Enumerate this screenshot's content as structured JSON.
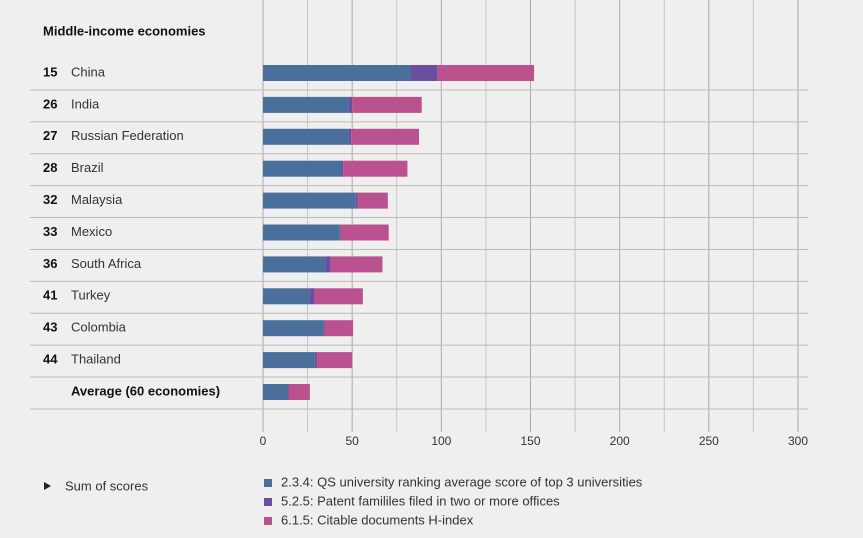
{
  "chart_data": {
    "type": "bar",
    "orientation": "horizontal",
    "stacked": true,
    "title": "Middle-income economies",
    "ranks": [
      15,
      26,
      27,
      28,
      32,
      33,
      36,
      41,
      43,
      44,
      null
    ],
    "categories": [
      "China",
      "India",
      "Russian Federation",
      "Brazil",
      "Malaysia",
      "Mexico",
      "South Africa",
      "Turkey",
      "Colombia",
      "Thailand",
      "Average (60 economies)"
    ],
    "series": [
      {
        "name": "2.3.4: QS university ranking average score of top 3 universities",
        "color": "#4a6f9b",
        "values": [
          83,
          48,
          48,
          44,
          52,
          43,
          35,
          26,
          34,
          29,
          14
        ]
      },
      {
        "name": "5.2.5: Patent famililes filed in two or more offices",
        "color": "#6a4f9e",
        "values": [
          15,
          2,
          1.5,
          1,
          1,
          0.5,
          3,
          3,
          0.5,
          1,
          0.3
        ]
      },
      {
        "name": "6.1.5: Citable documents H-index",
        "color": "#bb5290",
        "values": [
          54,
          39,
          38,
          36,
          17,
          27,
          29,
          27,
          16,
          20,
          12
        ]
      }
    ],
    "xlim": [
      0,
      300
    ],
    "xticks": [
      0,
      50,
      100,
      150,
      200,
      250,
      300
    ],
    "minor_xticks": [
      25,
      75,
      125,
      175,
      225,
      275
    ],
    "grid": true,
    "legend_title": "Sum of scores",
    "legend_position": "bottom"
  }
}
